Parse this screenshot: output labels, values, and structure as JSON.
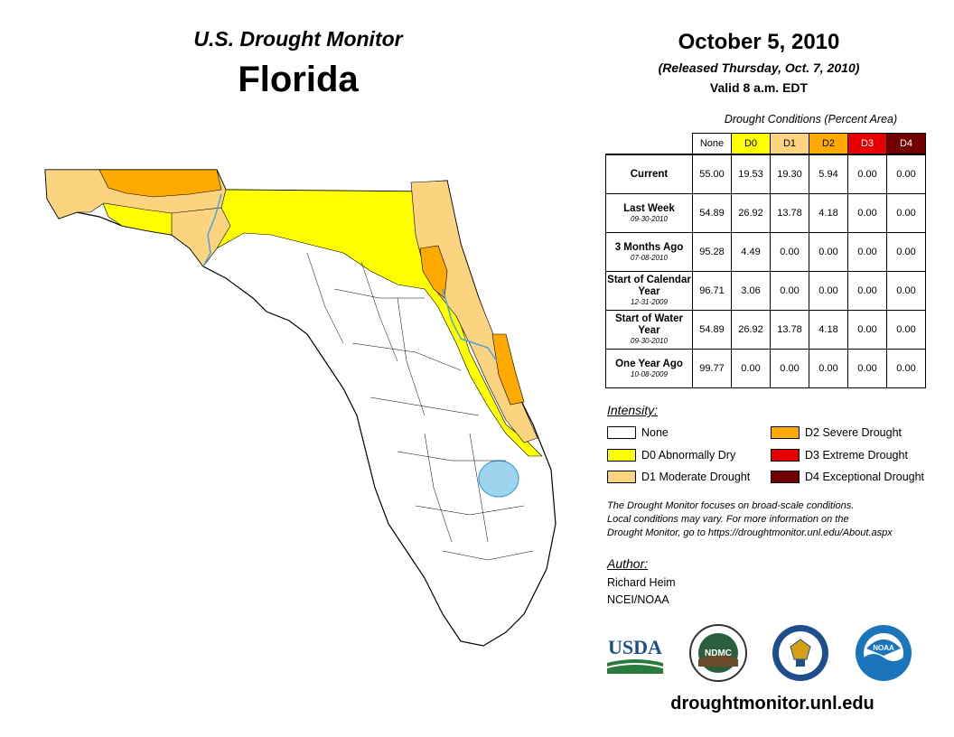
{
  "header": {
    "subtitle": "U.S. Drought Monitor",
    "state": "Florida",
    "date": "October 5, 2010",
    "released": "(Released Thursday, Oct. 7, 2010)",
    "valid": "Valid 8 a.m. EDT"
  },
  "conditions": {
    "title": "Drought Conditions (Percent Area)",
    "columns": [
      "None",
      "D0",
      "D1",
      "D2",
      "D3",
      "D4"
    ],
    "column_colors": [
      "#ffffff",
      "#ffff00",
      "#fcd37f",
      "#ffaa00",
      "#e60000",
      "#730000"
    ],
    "rows": [
      {
        "label": "Current",
        "date": "",
        "values": [
          "55.00",
          "19.53",
          "19.30",
          "5.94",
          "0.00",
          "0.00"
        ]
      },
      {
        "label": "Last Week",
        "date": "09-30-2010",
        "values": [
          "54.89",
          "26.92",
          "13.78",
          "4.18",
          "0.00",
          "0.00"
        ]
      },
      {
        "label": "3 Months Ago",
        "date": "07-08-2010",
        "values": [
          "95.28",
          "4.49",
          "0.00",
          "0.00",
          "0.00",
          "0.00"
        ]
      },
      {
        "label": "Start of Calendar Year",
        "date": "12-31-2009",
        "values": [
          "96.71",
          "3.06",
          "0.00",
          "0.00",
          "0.00",
          "0.00"
        ]
      },
      {
        "label": "Start of Water Year",
        "date": "09-30-2010",
        "values": [
          "54.89",
          "26.92",
          "13.78",
          "4.18",
          "0.00",
          "0.00"
        ]
      },
      {
        "label": "One Year Ago",
        "date": "10-08-2009",
        "values": [
          "99.77",
          "0.00",
          "0.00",
          "0.00",
          "0.00",
          "0.00"
        ]
      }
    ]
  },
  "legend": {
    "title": "Intensity:",
    "items": [
      {
        "label": "None",
        "color": "#ffffff"
      },
      {
        "label": "D0 Abnormally Dry",
        "color": "#ffff00"
      },
      {
        "label": "D1 Moderate Drought",
        "color": "#fcd37f"
      },
      {
        "label": "D2 Severe Drought",
        "color": "#ffaa00"
      },
      {
        "label": "D3 Extreme Drought",
        "color": "#e60000"
      },
      {
        "label": "D4 Exceptional Drought",
        "color": "#730000"
      }
    ]
  },
  "note": {
    "line1": "The Drought Monitor focuses on broad-scale conditions.",
    "line2": "Local conditions may vary. For more information on the",
    "line3": "Drought Monitor, go to https://droughtmonitor.unl.edu/About.aspx"
  },
  "author": {
    "title": "Author:",
    "name": "Richard Heim",
    "org": "NCEI/NOAA"
  },
  "logos": {
    "usda": "USDA",
    "ndmc": "NDMC",
    "noaa": "NOAA"
  },
  "website": "droughtmonitor.unl.edu"
}
